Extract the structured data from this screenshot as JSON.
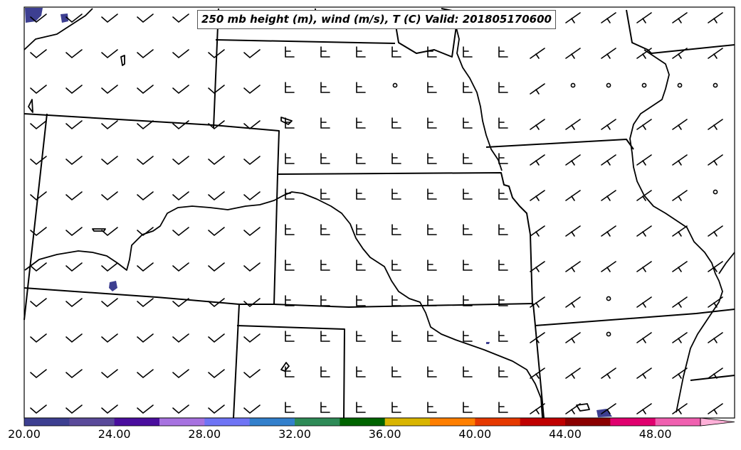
{
  "title": "250 mb height (m), wind (m/s), T (C) Valid: 201805170600",
  "colorbar": {
    "colors": [
      "#3d3f91",
      "#5a4a9a",
      "#4a0e9e",
      "#a772e0",
      "#6f74f5",
      "#3380cc",
      "#2e8b57",
      "#006400",
      "#d9b500",
      "#ff7f00",
      "#e63900",
      "#c00000",
      "#8b0000",
      "#e0006e",
      "#f060b0",
      "#ffb0d8"
    ],
    "tick_labels": [
      "20.00",
      "24.00",
      "28.00",
      "32.00",
      "36.00",
      "40.00",
      "44.00",
      "48.00"
    ]
  },
  "colors": {
    "shading": "#3d3f91",
    "borders": "#000000",
    "barbs": "#000000"
  }
}
